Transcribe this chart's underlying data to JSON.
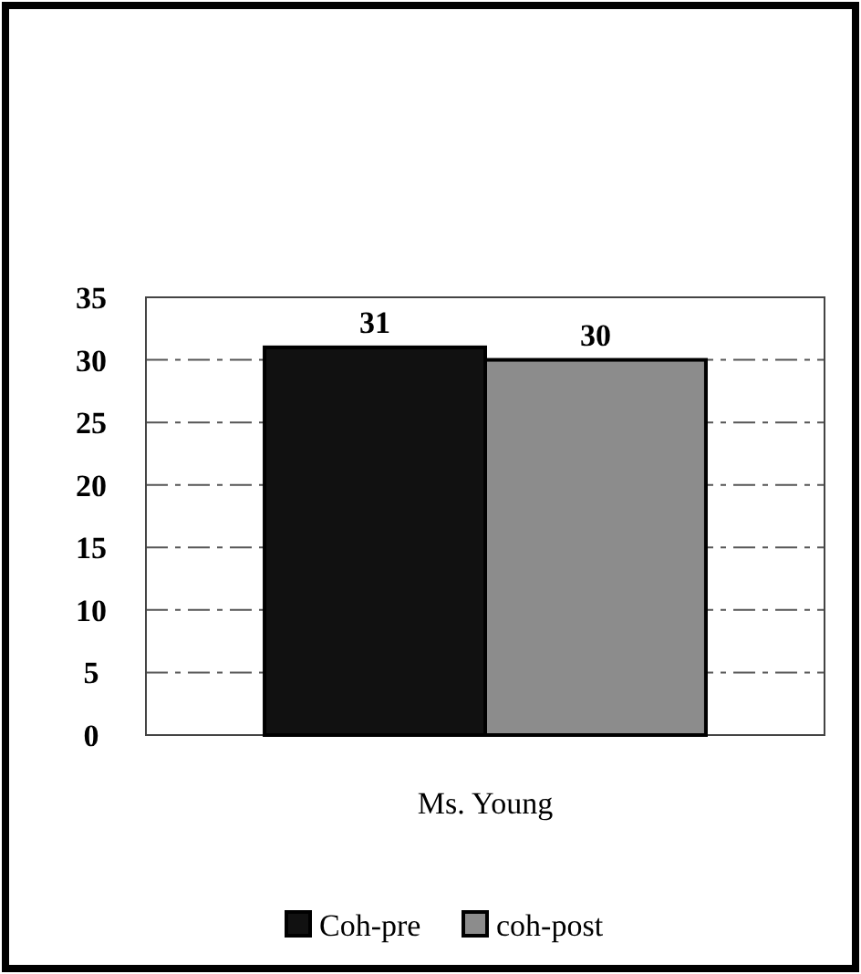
{
  "chart_data": {
    "type": "bar",
    "categories": [
      "Ms. Young"
    ],
    "series": [
      {
        "name": "Coh-pre",
        "color": "#111111",
        "values": [
          31
        ]
      },
      {
        "name": "coh-post",
        "color": "#8c8c8c",
        "values": [
          30
        ]
      }
    ],
    "ylim": [
      0,
      35
    ],
    "yticks": [
      0,
      5,
      10,
      15,
      20,
      25,
      30,
      35
    ],
    "grid": "y",
    "data_labels": true,
    "legend": "bottom"
  }
}
